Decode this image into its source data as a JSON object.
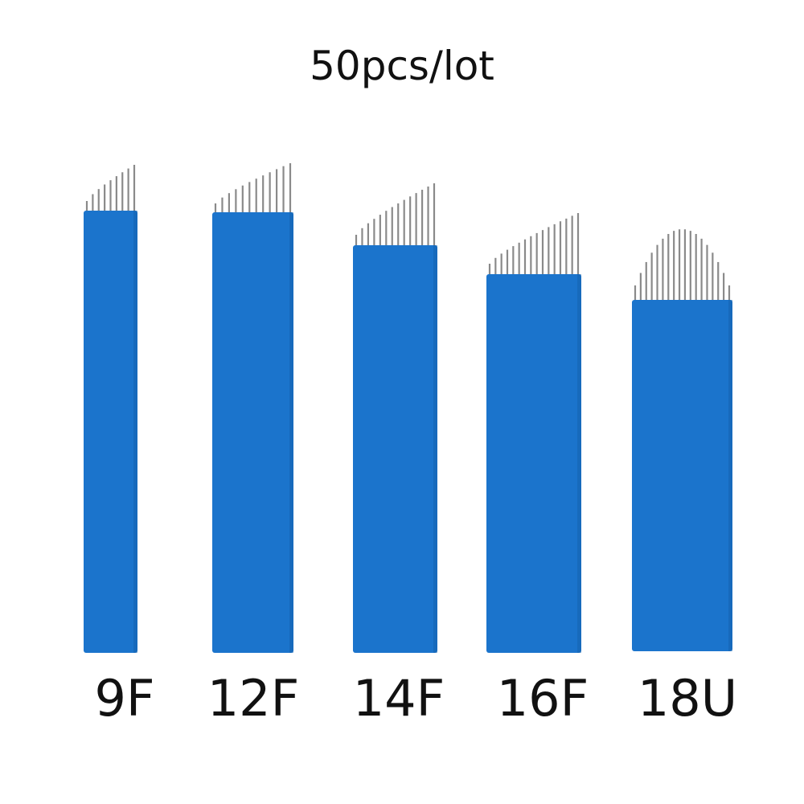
{
  "title": "50pcs/lot",
  "blade_color": "#1b74cc",
  "needle_color": "#8a8a8a",
  "blades": [
    {
      "label": "9F",
      "pin_count": 9,
      "tip_shape": "slanted"
    },
    {
      "label": "12F",
      "pin_count": 12,
      "tip_shape": "slanted"
    },
    {
      "label": "14F",
      "pin_count": 14,
      "tip_shape": "slanted"
    },
    {
      "label": "16F",
      "pin_count": 16,
      "tip_shape": "slanted"
    },
    {
      "label": "18U",
      "pin_count": 18,
      "tip_shape": "curved"
    }
  ]
}
